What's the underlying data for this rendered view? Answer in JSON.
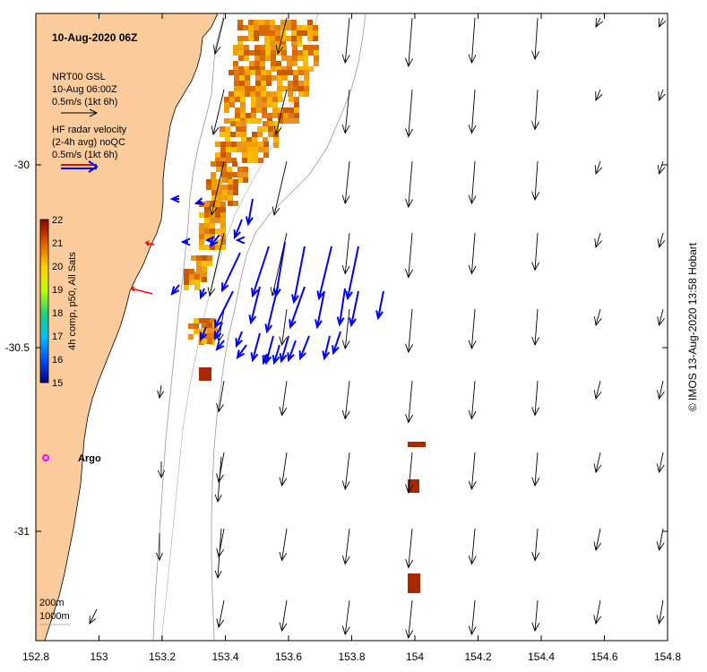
{
  "title": "10-Aug-2020 06Z",
  "model_legend": {
    "name": "NRT00 GSL",
    "time": "10-Aug 06:00Z",
    "scale": "0.5m/s (1kt 6h)"
  },
  "radar_legend": {
    "line1": "HF radar velocity",
    "line2": "(2-4h avg) noQC",
    "scale": "0.5m/s (1kt 6h)"
  },
  "colorbar": {
    "label": "4h comp, p50, All Sats",
    "ticks": [
      "22",
      "21",
      "20",
      "19",
      "18",
      "17",
      "16",
      "15"
    ],
    "min": 15,
    "max": 22
  },
  "axes": {
    "x_ticks": [
      "152.8",
      "153",
      "153.2",
      "153.4",
      "153.6",
      "153.8",
      "154",
      "154.2",
      "154.4",
      "154.6",
      "154.8"
    ],
    "y_ticks": [
      "-30",
      "-30.5",
      "-31"
    ],
    "xlim": [
      152.8,
      154.8
    ],
    "ylim": [
      -31.32,
      -29.58
    ]
  },
  "argo_label": "Argo",
  "depth_labels": [
    "200m",
    "1000m"
  ],
  "credit": "© IMOS 13-Aug-2020 13:58 Hobart",
  "colors": {
    "land": "#fccc9c",
    "model_arrow": "#000000",
    "radar_arrow": "#0000ff",
    "argo": "#ff00ff",
    "contour": "#999999"
  }
}
